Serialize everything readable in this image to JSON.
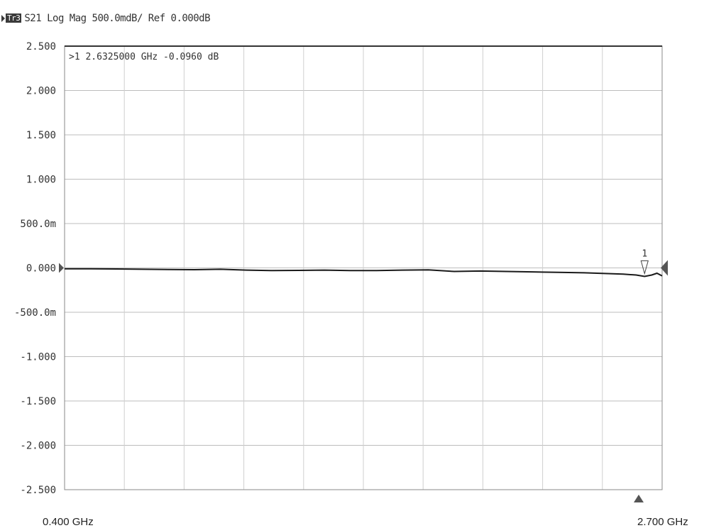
{
  "header": {
    "trace_badge": "Tr3",
    "title": "S21 Log Mag 500.0mdB/ Ref 0.000dB"
  },
  "marker_readout": ">1  2.6325000 GHz -0.0960 dB",
  "marker_label": "1",
  "axis": {
    "start_freq": "0.400 GHz",
    "stop_freq": "2.700 GHz"
  },
  "chart_data": {
    "type": "line",
    "title": "S21 Log Mag 500.0mdB/ Ref 0.000dB",
    "xlabel": "",
    "ylabel": "",
    "xlim": [
      0.4,
      2.7
    ],
    "ylim": [
      -2.5,
      2.5
    ],
    "x_unit": "GHz",
    "y_unit": "dB",
    "yticks": [
      2.5,
      2.0,
      1.5,
      1.0,
      0.5,
      0.0,
      -0.5,
      -1.0,
      -1.5,
      -2.0,
      -2.5
    ],
    "ytick_labels": [
      "2.500",
      "2.000",
      "1.500",
      "1.000",
      "500.0m",
      "0.000",
      "-500.0m",
      "-1.000",
      "-1.500",
      "-2.000",
      "-2.500"
    ],
    "x_divisions": 10,
    "grid": true,
    "series": [
      {
        "color": "#1a1a1a",
        "x": [
          0.4,
          0.5,
          0.6,
          0.7,
          0.8,
          0.9,
          1.0,
          1.1,
          1.2,
          1.3,
          1.4,
          1.5,
          1.6,
          1.7,
          1.8,
          1.9,
          2.0,
          2.1,
          2.2,
          2.3,
          2.4,
          2.45,
          2.5,
          2.55,
          2.6,
          2.6325,
          2.66,
          2.68,
          2.7
        ],
        "y": [
          -0.01,
          -0.01,
          -0.012,
          -0.015,
          -0.018,
          -0.02,
          -0.015,
          -0.025,
          -0.03,
          -0.028,
          -0.025,
          -0.03,
          -0.03,
          -0.025,
          -0.022,
          -0.04,
          -0.035,
          -0.04,
          -0.045,
          -0.05,
          -0.055,
          -0.06,
          -0.065,
          -0.07,
          -0.08,
          -0.096,
          -0.08,
          -0.06,
          -0.09
        ]
      }
    ],
    "markers": [
      {
        "label": "1",
        "x": 2.6325,
        "y": -0.096
      }
    ]
  }
}
